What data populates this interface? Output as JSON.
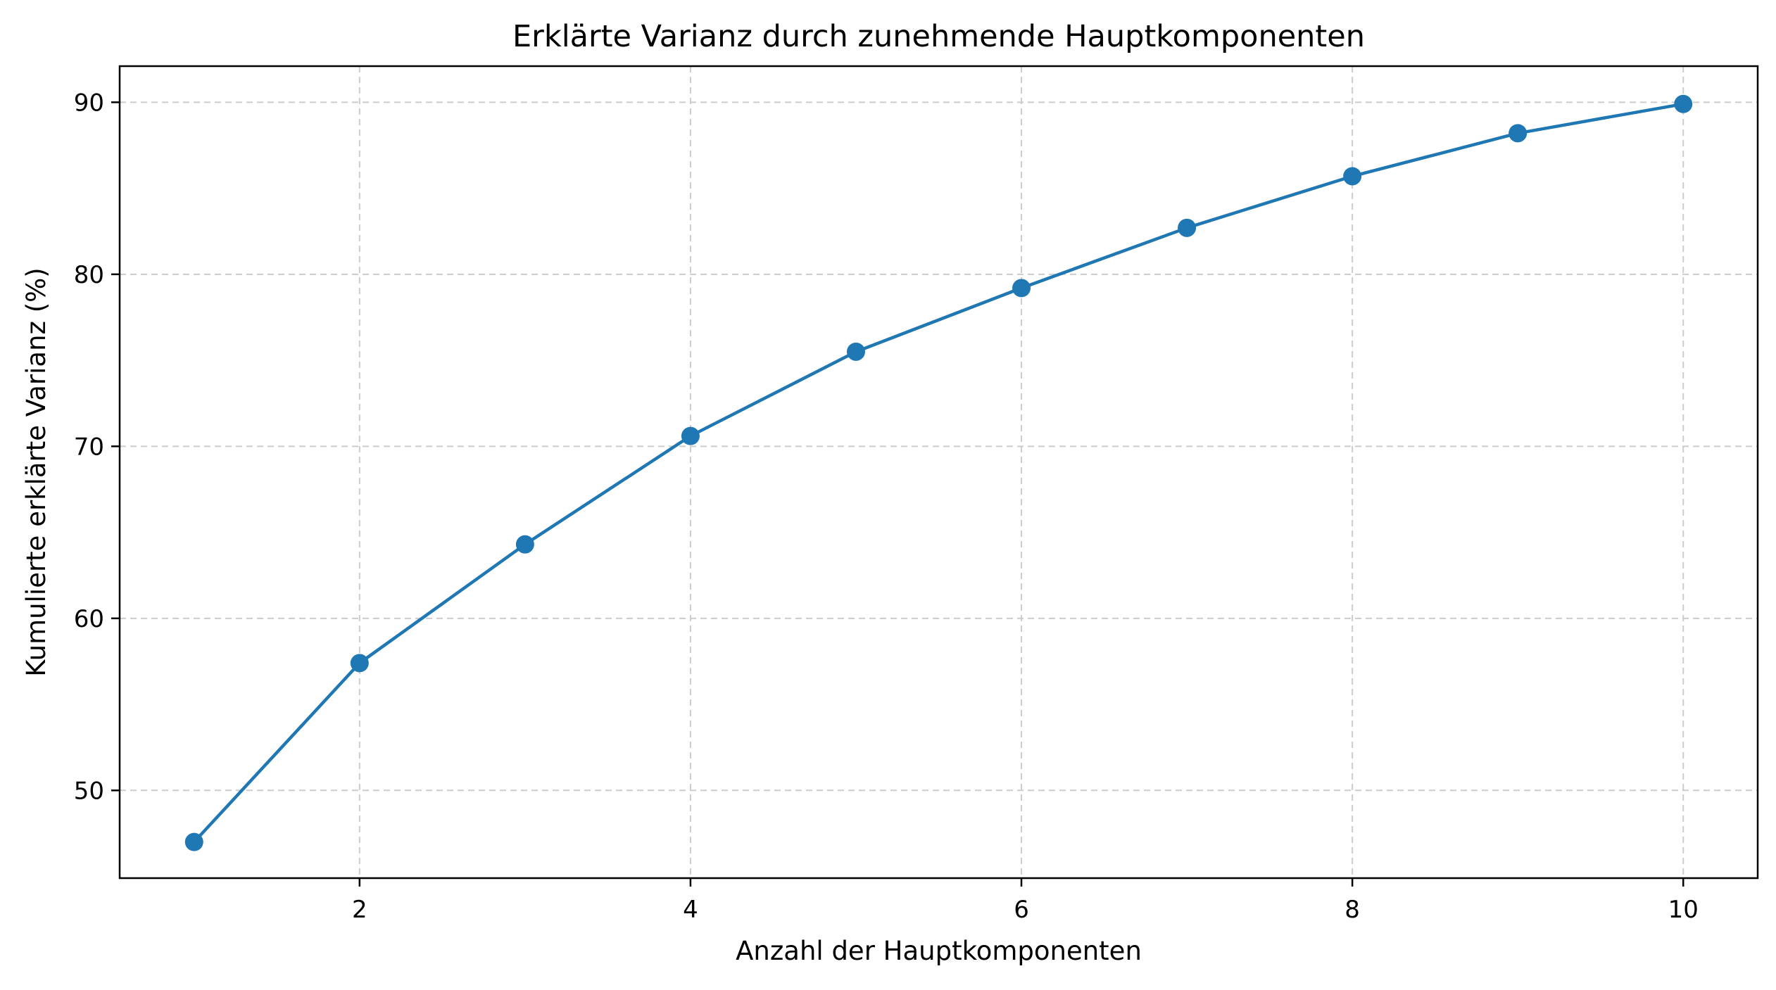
{
  "chart_data": {
    "type": "line",
    "title": "Erklärte Varianz durch zunehmende Hauptkomponenten",
    "xlabel": "Anzahl der Hauptkomponenten",
    "ylabel": "Kumulierte erklärte Varianz (%)",
    "x": [
      1,
      2,
      3,
      4,
      5,
      6,
      7,
      8,
      9,
      10
    ],
    "series": [
      {
        "values": [
          47.0,
          57.4,
          64.3,
          70.6,
          75.5,
          79.2,
          82.7,
          85.7,
          88.2,
          89.9
        ],
        "color": "#1f77b4",
        "marker": "circle"
      }
    ],
    "xlim": [
      0.55,
      10.45
    ],
    "ylim": [
      44.9,
      92.1
    ],
    "xticks": [
      2,
      4,
      6,
      8,
      10
    ],
    "yticks": [
      50,
      60,
      70,
      80,
      90
    ],
    "grid": true,
    "grid_style": "dashed",
    "legend": false
  }
}
